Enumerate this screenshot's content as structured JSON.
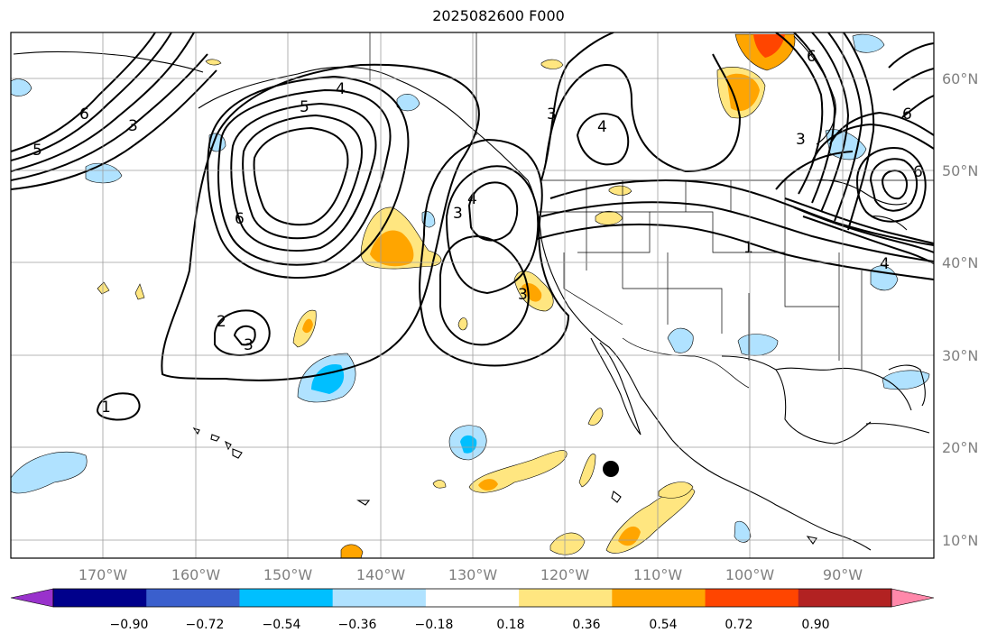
{
  "title": "2025082600 F000",
  "latitudes": [
    "60°N",
    "50°N",
    "40°N",
    "30°N",
    "20°N",
    "10°N"
  ],
  "longitudes": [
    "170°W",
    "160°W",
    "150°W",
    "140°W",
    "130°W",
    "120°W",
    "110°W",
    "100°W",
    "90°W"
  ],
  "colorbar": {
    "ticks": [
      "−0.90",
      "−0.72",
      "−0.54",
      "−0.36",
      "−0.18",
      "0.18",
      "0.36",
      "0.54",
      "0.72",
      "0.90"
    ],
    "colors": [
      "#9932cc",
      "#00008b",
      "#3a5fcd",
      "#00bfff",
      "#b0e2ff",
      "#ffffff",
      "#ffe680",
      "#ffa500",
      "#ff4500",
      "#b22222",
      "#ff88aa"
    ]
  },
  "contour_labels": [
    "6",
    "5",
    "4",
    "3",
    "2",
    "1"
  ],
  "marker": "storm-position-dot"
}
